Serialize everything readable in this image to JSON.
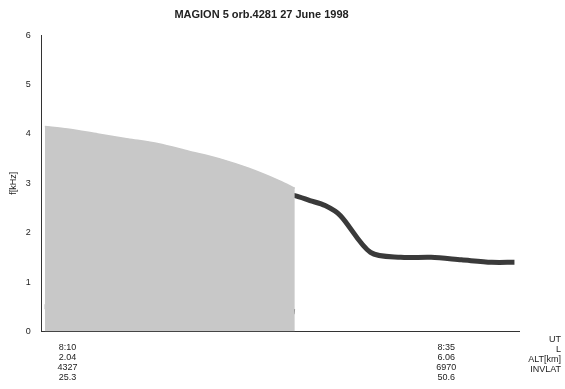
{
  "chart_data": {
    "type": "line",
    "title": "MAGION 5 orb.4281 27 June 1998",
    "y_label": "f[kHz]",
    "x": [
      488.5,
      490,
      492,
      494,
      496,
      498,
      500,
      502,
      504,
      505,
      506,
      507,
      508,
      510,
      512,
      514,
      516,
      518,
      519.5
    ],
    "series": [
      {
        "type": "area",
        "color": "#c8c8c8",
        "values": [
          4.15,
          4.1,
          4.0,
          3.9,
          3.8,
          3.65,
          3.5,
          3.3,
          3.05,
          2.9,
          null,
          null,
          null,
          null,
          null,
          null,
          null,
          null,
          null
        ]
      },
      {
        "color": "#3a3a3a",
        "values": [
          null,
          null,
          null,
          null,
          null,
          null,
          null,
          2.9,
          2.8,
          2.75,
          2.65,
          2.55,
          2.35,
          1.6,
          1.5,
          1.5,
          1.45,
          1.4,
          1.4
        ]
      },
      {
        "color": "#444444",
        "values": [
          0.5,
          0.5,
          0.5,
          0.48,
          0.48,
          0.47,
          0.46,
          0.45,
          0.44,
          0.4,
          null,
          null,
          null,
          null,
          null,
          null,
          null,
          null,
          null
        ]
      }
    ],
    "xlim": [
      488.3,
      519.8
    ],
    "xticks": [
      {
        "value": 490,
        "label": [
          "8:10",
          "2.04",
          "4327",
          "25.3"
        ]
      },
      {
        "value": 515,
        "label": [
          "8:35",
          "6.06",
          "6970",
          "50.6"
        ]
      }
    ],
    "x_row_labels": [
      "UT",
      "L",
      "ALT[km]",
      "INVLAT"
    ],
    "ylim": [
      0,
      6
    ],
    "yticks": [
      0,
      1,
      2,
      3,
      4,
      5,
      6
    ],
    "grid": false
  }
}
